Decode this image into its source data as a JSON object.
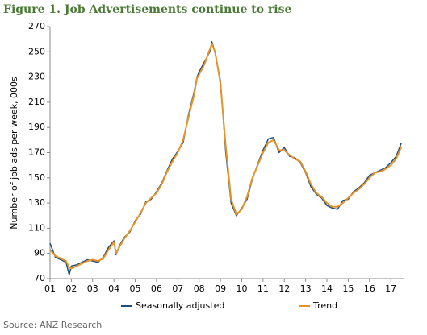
{
  "chart_data": {
    "type": "line",
    "title": "Figure 1. Job Advertisements continue to rise",
    "y_label": "Number of job ads per week, 000s",
    "source": "Source: ANZ Research",
    "x": [
      1.0,
      1.25,
      1.5,
      1.75,
      1.9,
      2.0,
      2.25,
      2.5,
      2.75,
      3.0,
      3.25,
      3.5,
      3.75,
      4.0,
      4.1,
      4.25,
      4.5,
      4.75,
      5.0,
      5.25,
      5.5,
      5.75,
      6.0,
      6.25,
      6.5,
      6.75,
      7.0,
      7.25,
      7.5,
      7.75,
      7.9,
      8.0,
      8.25,
      8.5,
      8.6,
      8.75,
      9.0,
      9.25,
      9.5,
      9.75,
      10.0,
      10.25,
      10.5,
      10.75,
      11.0,
      11.25,
      11.5,
      11.75,
      12.0,
      12.25,
      12.5,
      12.75,
      13.0,
      13.25,
      13.5,
      13.75,
      14.0,
      14.25,
      14.5,
      14.75,
      15.0,
      15.25,
      15.5,
      15.75,
      16.0,
      16.25,
      16.5,
      16.75,
      17.0,
      17.25,
      17.5
    ],
    "series": [
      {
        "name": "Seasonally adjusted",
        "color": "#1f4e79",
        "values": [
          98,
          87,
          85,
          83,
          73,
          80,
          81,
          83,
          85,
          84,
          83,
          87,
          95,
          100,
          89,
          96,
          103,
          107,
          116,
          121,
          131,
          133,
          139,
          146,
          156,
          165,
          171,
          178,
          200,
          217,
          230,
          234,
          242,
          250,
          258,
          249,
          227,
          170,
          130,
          120,
          126,
          133,
          149,
          161,
          172,
          181,
          182,
          170,
          174,
          167,
          166,
          162,
          154,
          143,
          137,
          134,
          128,
          126,
          125,
          132,
          133,
          139,
          142,
          146,
          152,
          154,
          156,
          158,
          162,
          167,
          178
        ]
      },
      {
        "name": "Trend",
        "color": "#e8922a",
        "values": [
          93,
          88,
          86,
          84,
          79,
          78,
          80,
          82,
          84,
          85,
          84,
          86,
          93,
          99,
          90,
          95,
          102,
          108,
          115,
          122,
          130,
          134,
          138,
          145,
          155,
          163,
          170,
          180,
          198,
          215,
          229,
          232,
          240,
          252,
          256,
          250,
          225,
          175,
          133,
          121,
          125,
          135,
          150,
          160,
          170,
          178,
          180,
          172,
          172,
          168,
          165,
          163,
          155,
          145,
          138,
          135,
          130,
          127,
          127,
          130,
          134,
          138,
          141,
          145,
          150,
          154,
          155,
          157,
          160,
          165,
          175
        ]
      }
    ],
    "xlim": [
      1,
      17.6
    ],
    "xticks": [
      {
        "value": 1,
        "label": "01"
      },
      {
        "value": 2,
        "label": "02"
      },
      {
        "value": 3,
        "label": "03"
      },
      {
        "value": 4,
        "label": "04"
      },
      {
        "value": 5,
        "label": "05"
      },
      {
        "value": 6,
        "label": "06"
      },
      {
        "value": 7,
        "label": "07"
      },
      {
        "value": 8,
        "label": "08"
      },
      {
        "value": 9,
        "label": "09"
      },
      10,
      11,
      12,
      13,
      14,
      15,
      16,
      17
    ],
    "ylim": [
      70,
      270
    ],
    "yticks": [
      70,
      90,
      110,
      130,
      150,
      170,
      190,
      210,
      230,
      250,
      270
    ],
    "grid": false
  }
}
